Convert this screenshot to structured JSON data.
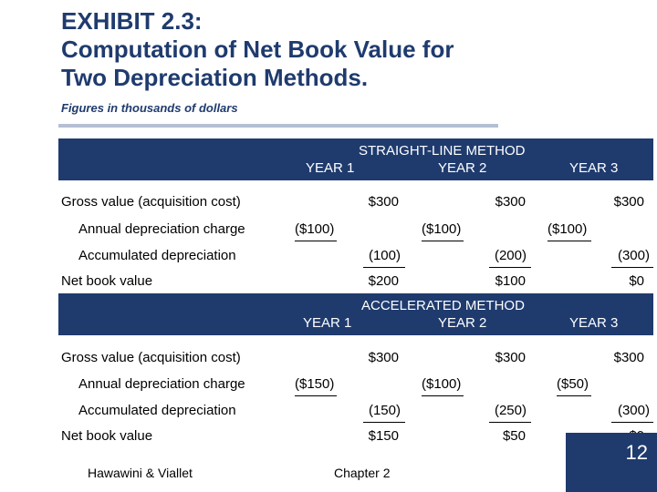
{
  "title": {
    "line1": "EXHIBIT 2.3:",
    "line2": "Computation of Net Book Value for",
    "line3": "Two Depreciation Methods.",
    "subtitle": "Figures in thousands of dollars"
  },
  "sections": [
    {
      "method": "STRAIGHT-LINE METHOD",
      "years": [
        "YEAR 1",
        "YEAR 2",
        "YEAR 3"
      ],
      "rows": {
        "gross": {
          "label": "Gross value (acquisition cost)",
          "values": [
            "$300",
            "$300",
            "$300"
          ]
        },
        "annual": {
          "label": "Annual depreciation charge",
          "values": [
            "($100)",
            "($100)",
            "($100)"
          ]
        },
        "accum": {
          "label": "Accumulated depreciation",
          "values": [
            "(100)",
            "(200)",
            "(300)"
          ]
        },
        "nbv": {
          "label": "Net book value",
          "values": [
            "$200",
            "$100",
            "$0"
          ]
        }
      }
    },
    {
      "method": "ACCELERATED METHOD",
      "years": [
        "YEAR 1",
        "YEAR 2",
        "YEAR 3"
      ],
      "rows": {
        "gross": {
          "label": "Gross value (acquisition cost)",
          "values": [
            "$300",
            "$300",
            "$300"
          ]
        },
        "annual": {
          "label": "Annual depreciation charge",
          "values": [
            "($150)",
            "($100)",
            "($50)"
          ]
        },
        "accum": {
          "label": "Accumulated depreciation",
          "values": [
            "(150)",
            "(250)",
            "(300)"
          ]
        },
        "nbv": {
          "label": "Net book value",
          "values": [
            "$150",
            "$50",
            "$0"
          ]
        }
      }
    }
  ],
  "footer": {
    "authors": "Hawawini & Viallet",
    "chapter": "Chapter 2",
    "page": "12"
  },
  "colors": {
    "navy": "#1f3b6e",
    "rule": "#b4bfd4"
  }
}
